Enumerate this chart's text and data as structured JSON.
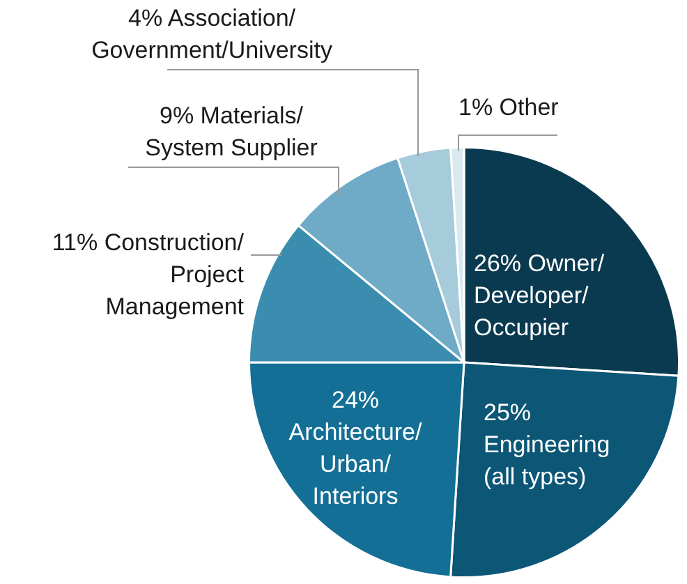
{
  "chart_data": {
    "type": "pie",
    "categories": [
      "Owner/\nDeveloper/\nOccupier",
      "Engineering\n(all types)",
      "Architecture/\nUrban/\nInteriors",
      "Construction/\nProject\nManagement",
      "Materials/\nSystem Supplier",
      "Association/\nGovernment/University",
      "Other"
    ],
    "values": [
      26,
      25,
      24,
      11,
      9,
      4,
      1
    ],
    "value_labels": [
      "26%",
      "25%",
      "24%",
      "11%",
      "9%",
      "4%",
      "1%"
    ],
    "colors": [
      "#0a3a4f",
      "#0c5676",
      "#136f95",
      "#3b8db0",
      "#6fabc6",
      "#a6cbdb",
      "#dae9f0"
    ],
    "legend": false
  }
}
